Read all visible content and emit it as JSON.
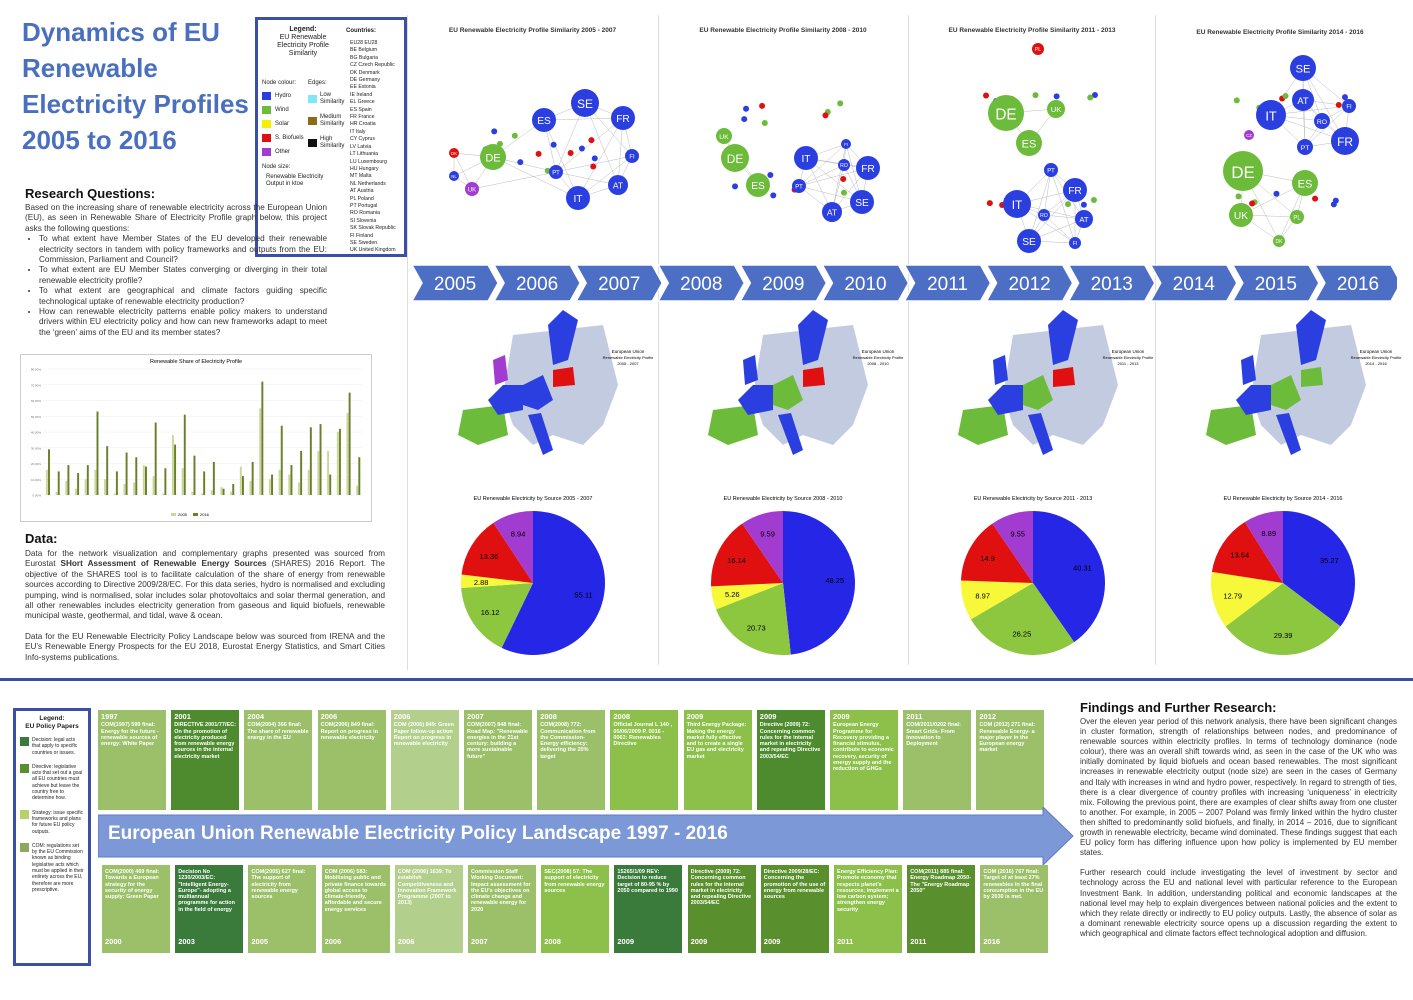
{
  "header": {
    "title_lines": [
      "Dynamics of EU",
      "Renewable",
      "Electricity Profiles",
      "2005 to 2016"
    ]
  },
  "legend": {
    "title_lines": [
      "Legend:",
      "EU Renewable",
      "Electricity Profile",
      "Similarity"
    ],
    "node_colour": "Node colour:",
    "edges": "Edges:",
    "node_items": [
      {
        "label": "Hydro",
        "color": "#2b3fe0"
      },
      {
        "label": "Wind",
        "color": "#6dbb3a"
      },
      {
        "label": "Solar",
        "color": "#f4f000"
      },
      {
        "label": "S. Biofuels",
        "color": "#e01010"
      },
      {
        "label": "Other",
        "color": "#a23bd0"
      }
    ],
    "edge_items": [
      {
        "label": "Low Similarity",
        "color": "#7ee8f6"
      },
      {
        "label": "Medium Similarity",
        "color": "#8b6a1a"
      },
      {
        "label": "High Similarity",
        "color": "#111111"
      }
    ],
    "node_size": "Node size:",
    "node_size_desc": "Renewable Electricity Output in ktoe",
    "countries_label": "Countries:",
    "countries": [
      "EU28 EU28",
      "BE Belgium",
      "BG Bulgaria",
      "CZ Czech Republic",
      "DK Denmark",
      "DE Germany",
      "EE Estonia",
      "IE Ireland",
      "EL Greece",
      "ES Spain",
      "FR France",
      "HR Croatia",
      "IT Italy",
      "CY Cyprus",
      "LV Latvia",
      "LT Lithuania",
      "LU Luxembourg",
      "HU Hungary",
      "MT Malta",
      "NL Netherlands",
      "AT Austria",
      "PL Poland",
      "PT Portugal",
      "RO Romania",
      "SI Slovenia",
      "SK Slovak Republic",
      "FI Finland",
      "SE Sweden",
      "UK United Kingdom"
    ]
  },
  "research": {
    "heading": "Research Questions:",
    "intro": "Based on the increasing share of renewable electricity across the European Union (EU), as seen in Renewable Share of Electricity Profile graph below, this project asks the following questions:",
    "questions": [
      "To what extent have Member States of the EU developed their renewable electricity sectors in tandem with policy frameworks and outputs from the EU: Commission, Parliament and Council?",
      "To what extent are EU Member States converging or diverging in their total renewable electricity profile?",
      "To what extent are geographical and climate factors guiding specific technological uptake of renewable electricity production?",
      "How can renewable electricity patterns enable policy makers to understand drivers within EU electricity policy and how can new frameworks adapt to meet the ‘green’ aims of the EU and its member states?"
    ]
  },
  "bar_chart": {
    "title": "Renewable Share of Electricity Profile",
    "legend": [
      "2005",
      "2016"
    ],
    "colors": [
      "#c9d89a",
      "#6b7f2a"
    ]
  },
  "chart_data": {
    "type": "bar",
    "title": "Renewable Share of Electricity Profile",
    "legend": [
      "2005",
      "2016"
    ],
    "series": [
      {
        "name": "2005",
        "values": [
          16,
          2,
          9,
          4,
          10,
          16,
          10,
          1,
          7,
          8,
          19,
          12,
          1,
          38,
          17,
          2,
          1,
          3,
          5,
          2,
          18,
          9,
          55,
          10,
          16,
          13,
          8,
          16,
          28,
          28,
          40,
          52,
          6
        ]
      },
      {
        "name": "2016",
        "values": [
          29,
          15,
          19,
          14,
          19,
          53,
          31,
          15,
          27,
          24,
          18,
          46,
          17,
          32,
          51,
          25,
          15,
          21,
          4,
          7,
          12,
          21,
          72,
          13,
          44,
          19,
          28,
          43,
          45,
          13,
          42,
          65,
          24
        ]
      }
    ],
    "ylim": [
      0,
      80
    ]
  },
  "data_section": {
    "heading": "Data:",
    "p1_a": "Data for the network visualization and complementary graphs presented was sourced from Eurostat ",
    "p1_bold": "SHort Assessment of Renewable Energy Sources",
    "p1_b": " (SHARES) 2016 Report. The objective of the SHARES tool is to facilitate calculation of the share of energy from renewable sources according to Directive 2009/28/EC. For this data series, hydro is normalised and excluding pumping, wind is normalised, solar includes solar photovoltaics and solar thermal generation, and all other renewables includes electricity generation from gaseous and liquid biofuels, renewable municipal waste, geothermal, and tidal, wave & ocean.",
    "p2": "Data for the EU Renewable Electricity Policy Landscape below was sourced from IRENA and the EU’s Renewable Energy Prospects for the EU 2018, Eurostat Energy Statistics, and Smart Cities Info-systems publications."
  },
  "networks": [
    {
      "title": "EU Renewable Electricity Profile Similarity 2005 - 2007",
      "nodes": [
        [
          "SE",
          "#2b3fe0",
          585,
          103,
          14
        ],
        [
          "ES",
          "#2b3fe0",
          544,
          120,
          12
        ],
        [
          "FR",
          "#2b3fe0",
          623,
          118,
          12
        ],
        [
          "DE",
          "#6dbb3a",
          493,
          157,
          13
        ],
        [
          "FI",
          "#2b3fe0",
          632,
          156,
          7
        ],
        [
          "AT",
          "#2b3fe0",
          618,
          185,
          10
        ],
        [
          "PT",
          "#2b3fe0",
          556,
          172,
          7
        ],
        [
          "IT",
          "#2b3fe0",
          578,
          198,
          12
        ],
        [
          "UK",
          "#a23bd0",
          472,
          189,
          7
        ],
        [
          "DK",
          "#e01010",
          454,
          153,
          5
        ],
        [
          "NL",
          "#2b3fe0",
          454,
          176,
          5
        ]
      ]
    },
    {
      "title": "EU Renewable Electricity Profile Similarity 2008 - 2010",
      "nodes": [
        [
          "DE",
          "#6dbb3a",
          735,
          158,
          14
        ],
        [
          "ES",
          "#6dbb3a",
          758,
          185,
          12
        ],
        [
          "UK",
          "#6dbb3a",
          724,
          136,
          8
        ],
        [
          "IT",
          "#2b3fe0",
          806,
          158,
          12
        ],
        [
          "FR",
          "#2b3fe0",
          868,
          168,
          12
        ],
        [
          "SE",
          "#2b3fe0",
          862,
          202,
          12
        ],
        [
          "AT",
          "#2b3fe0",
          832,
          212,
          10
        ],
        [
          "PT",
          "#2b3fe0",
          799,
          186,
          7
        ],
        [
          "RO",
          "#2b3fe0",
          844,
          165,
          6
        ],
        [
          "FI",
          "#2b3fe0",
          846,
          144,
          5
        ]
      ]
    },
    {
      "title": "EU Renewable Electricity Profile Similarity 2011 - 2013",
      "nodes": [
        [
          "DE",
          "#6dbb3a",
          1006,
          113,
          18
        ],
        [
          "ES",
          "#6dbb3a",
          1029,
          143,
          13
        ],
        [
          "UK",
          "#6dbb3a",
          1056,
          109,
          9
        ],
        [
          "FR",
          "#2b3fe0",
          1075,
          190,
          12
        ],
        [
          "IT",
          "#2b3fe0",
          1017,
          204,
          14
        ],
        [
          "SE",
          "#2b3fe0",
          1029,
          241,
          12
        ],
        [
          "AT",
          "#2b3fe0",
          1084,
          219,
          9
        ],
        [
          "PT",
          "#2b3fe0",
          1051,
          170,
          7
        ],
        [
          "RO",
          "#2b3fe0",
          1044,
          215,
          6
        ],
        [
          "FI",
          "#2b3fe0",
          1075,
          243,
          6
        ],
        [
          "PL",
          "#e01010",
          1038,
          49,
          6
        ]
      ]
    },
    {
      "title": "EU Renewable Electricity Profile Similarity 2014 - 2016",
      "nodes": [
        [
          "SE",
          "#2b3fe0",
          1303,
          68,
          13
        ],
        [
          "IT",
          "#2b3fe0",
          1271,
          115,
          15
        ],
        [
          "FR",
          "#2b3fe0",
          1345,
          141,
          14
        ],
        [
          "AT",
          "#2b3fe0",
          1303,
          100,
          11
        ],
        [
          "RO",
          "#2b3fe0",
          1322,
          121,
          8
        ],
        [
          "PT",
          "#2b3fe0",
          1305,
          147,
          8
        ],
        [
          "FI",
          "#2b3fe0",
          1349,
          106,
          7
        ],
        [
          "DE",
          "#6dbb3a",
          1243,
          171,
          20
        ],
        [
          "ES",
          "#6dbb3a",
          1305,
          183,
          13
        ],
        [
          "UK",
          "#6dbb3a",
          1241,
          215,
          12
        ],
        [
          "PL",
          "#6dbb3a",
          1297,
          217,
          7
        ],
        [
          "DK",
          "#6dbb3a",
          1279,
          241,
          6
        ],
        [
          "CZ",
          "#a23bd0",
          1249,
          135,
          5
        ]
      ]
    }
  ],
  "timeline": {
    "years": [
      "2005",
      "2006",
      "2007",
      "2008",
      "2009",
      "2010",
      "2011",
      "2012",
      "2013",
      "2014",
      "2015",
      "2016"
    ],
    "color": "#4c6ec4"
  },
  "maps": [
    {
      "title_lines": [
        "European Union",
        "Renewable Electricity Profile",
        "2005 - 2007"
      ]
    },
    {
      "title_lines": [
        "European Union",
        "Renewable Electricity Profile",
        "2008 - 2010"
      ]
    },
    {
      "title_lines": [
        "European Union",
        "Renewable Electricity Profile",
        "2011 - 2013"
      ]
    },
    {
      "title_lines": [
        "European Union",
        "Renewable Electricity Profile",
        "2014 - 2016"
      ]
    }
  ],
  "pies": [
    {
      "title": "EU Renewable Electricity by Source 2005 - 2007",
      "values": [
        55.11,
        16.12,
        2.88,
        13.36,
        8.94
      ]
    },
    {
      "title": "EU Renewable Electricity by Source 2008 - 2010",
      "values": [
        48.25,
        20.73,
        5.26,
        16.14,
        9.59
      ]
    },
    {
      "title": "EU Renewable Electricity by Source 2011 - 2013",
      "values": [
        40.31,
        26.25,
        8.97,
        14.9,
        9.55
      ]
    },
    {
      "title": "EU Renewable Electricity by Source 2014 - 2016",
      "values": [
        35.27,
        29.39,
        12.79,
        13.64,
        8.89
      ]
    }
  ],
  "pie_colors": [
    "#2626e6",
    "#8dc63f",
    "#f8f83a",
    "#e01010",
    "#a23bd0"
  ],
  "policy_legend": {
    "title_lines": [
      "Legend:",
      "EU Policy Papers"
    ],
    "items": [
      {
        "label": "Decision: legal acts that apply to specific countries or issues.",
        "color": "#3a7a3a"
      },
      {
        "label": "Directive: legislative acts that set out a goal all EU countries must achieve but leave the country free to determine how.",
        "color": "#5a8f2e"
      },
      {
        "label": "Strategy: issue specific frameworks and plans for future EU policy outputs.",
        "color": "#b6d26a"
      },
      {
        "label": "COM: regulations set by the EU Commission known as binding legislative acts which must be applied in their entirety across the EU, therefore are more prescriptive.",
        "color": "#8aa85e"
      }
    ]
  },
  "policy_banner": "European Union Renewable Electricity Policy Landscape 1997 - 2016",
  "policy_top": [
    {
      "year": "1997",
      "text": "COM(1997) 599 final: Energy for the future - renewable sources of energy: White Paper",
      "color": "#9cc06a"
    },
    {
      "year": "2001",
      "text": "DIRECTIVE 2001/77/EC: On the promotion of electricity produced from renewable energy sources in the internal electricity market",
      "color": "#4e8b2f"
    },
    {
      "year": "2004",
      "text": "COM(2004) 366 final: The share of renewable energy in the EU",
      "color": "#9cc06a"
    },
    {
      "year": "2006",
      "text": "COM(2006) 849 final: Report on progress in renewable electricity",
      "color": "#9cc06a"
    },
    {
      "year": "2006",
      "text": "COM (2006) 849: Green Paper follow-up action Report on progress in renewable electricity",
      "color": "#b3cf8c"
    },
    {
      "year": "2007",
      "text": "COM(2007) 848 final: Road Map: \"Renewable energies in the 21st century: building a more sustainable future\"",
      "color": "#9cc06a"
    },
    {
      "year": "2008",
      "text": "COM(2008) 772: Communication from the Commission-Energy efficiency: delivering the 20% target",
      "color": "#9cc06a"
    },
    {
      "year": "2008",
      "text": "Official Journal L 140 , 05/06/2009 P. 0016 - 0062: Renewables Directive",
      "color": "#8cc04a"
    },
    {
      "year": "2009",
      "text": "Third Energy Package: Making the energy market fully effective and to create a single EU gas and electricity market",
      "color": "#8cc04a"
    },
    {
      "year": "2009",
      "text": "Directive (2009) 72: Concerning common rules for the internal market in electricity and repealing Directive 2003/54/EC",
      "color": "#4e8b2f"
    },
    {
      "year": "2009",
      "text": "European Energy Programme for Recovery providing a financial stimulus, contribute to economic recovery, security of energy supply and the reduction of GHGs",
      "color": "#8cc04a"
    },
    {
      "year": "2011",
      "text": "COM/2011/0202 final: Smart Grids- From Innovation to Deployment",
      "color": "#9cc06a"
    },
    {
      "year": "2012",
      "text": "COM (2012) 271 final: Renewable Energy- a major player in the European energy market",
      "color": "#9cc06a"
    }
  ],
  "policy_bottom": [
    {
      "year": "2000",
      "text": "COM(2000) 469 final: Towards a European strategy for the security of energy supply: Green Paper",
      "color": "#9cc06a"
    },
    {
      "year": "2003",
      "text": "Decision No 1230/2003/EC: \"Intelligent Energy-Europe\"- adopting a multiannual programme for action in the field of energy",
      "color": "#3a7a3a"
    },
    {
      "year": "2005",
      "text": "COM(2005) 627 final: The support of electricity from renewable energy sources",
      "color": "#9cc06a"
    },
    {
      "year": "2006",
      "text": "COM (2006) 583: Mobilising public and private finance towards global access to climate-friendly, affordable and secure energy services",
      "color": "#9cc06a"
    },
    {
      "year": "2006",
      "text": "COM (2006) 1639: To establish Competitiveness and Innovation Framework Programme (2007 to 2013)",
      "color": "#b3cf8c"
    },
    {
      "year": "2007",
      "text": "Commission Staff Working Document: Impact assessment for the EU's objectives on climate change and renewable energy for 2020",
      "color": "#9cc06a"
    },
    {
      "year": "2008",
      "text": "SEC(2008) 57: The support of electricity from renewable energy sources",
      "color": "#8cc04a"
    },
    {
      "year": "2009",
      "text": "15265/1/09 REV: Decision to reduce target of 80-95 % by 2050 compared to 1990",
      "color": "#3a7a3a"
    },
    {
      "year": "2009",
      "text": "Directive (2009) 72: Concerning common rules for the internal market in electricity and repealing Directive 2003/54/EC",
      "color": "#5a8f2e"
    },
    {
      "year": "2009",
      "text": "Directive 2009/28/EC: Concerning the promotion of the use of energy from renewable sources",
      "color": "#5a8f2e"
    },
    {
      "year": "2011",
      "text": "Energy Efficiency Plan: Promote economy that respects planet's resources; implement a low carbon system; strengthen energy security",
      "color": "#8cc04a"
    },
    {
      "year": "2011",
      "text": "COM(2011) 885 final: Energy Roadmap 2050- The \"Energy Roadmap 2050\"",
      "color": "#5a8f2e"
    },
    {
      "year": "2016",
      "text": "COM (2016) 767 final: Target of at least 27% renewables in the final consumption in the EU by 2030 is met.",
      "color": "#9cc06a"
    }
  ],
  "findings": {
    "heading": "Findings and Further Research:",
    "p1": "Over the eleven year period of this network analysis, there have been significant changes in cluster formation, strength of relationships between nodes, and predominance of renewable sources within electricity profiles. In terms of technology dominance (node colour), there was an overall shift towards wind, as seen in the case of the UK who was initially dominated by liquid biofuels and ocean based renewables. The most significant increases in renewable electricity output (node size) are seen in the cases of Germany and Italy with increases in wind and hydro power, respectively. In regard to strength of ties, there is a clear divergence of country profiles with increasing ‘uniqueness’ in electricity mix. Following the previous point, there are examples of clear shifts away from one cluster to another. For example, in 2005 – 2007 Poland was firmly linked within the hydro cluster then shifted to predominantly solid biofuels, and finally, in 2014 – 2016, due to significant growth in renewable electricity, became wind dominated. These findings suggest that each EU policy form has differing influence upon how policy is implemented by EU member states.",
    "p2": "Further research could include investigating the level of investment by sector and technology across the EU and national level with particular reference to the European Investment Bank. In addition, understanding political and economic landscapes at the national level may help to explain divergences between national policies and the extent to which they relate directly or indirectly to EU policy outputs. Lastly, the absence of solar as a dominant renewable electricity source opens up a discussion regarding the extent to which geographical and climate factors effect technological adoption and diffusion."
  }
}
